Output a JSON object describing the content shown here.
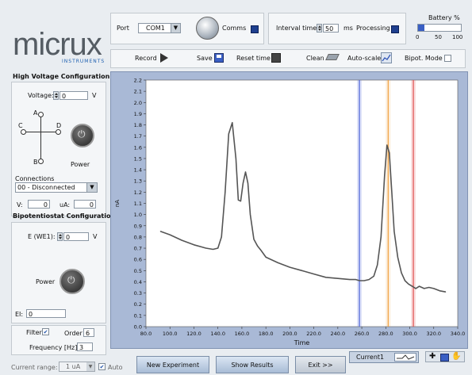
{
  "logo": {
    "text": "micrux",
    "subtext": "INSTRUMENTS"
  },
  "top": {
    "port_label": "Port",
    "port_value": "COM1",
    "comms_label": "Comms",
    "interval_label": "Interval time",
    "interval_value": "50",
    "interval_unit": "ms",
    "processing_label": "Processing",
    "battery_label": "Battery %",
    "battery_ticks": [
      "0",
      "50",
      "100"
    ],
    "battery_level_percent": 15
  },
  "toolbar": {
    "record_label": "Record",
    "save_label": "Save",
    "reset_label": "Reset time",
    "clean_label": "Clean",
    "autoscale_label": "Auto-scale",
    "bipot_label": "Bipot. Mode"
  },
  "hv": {
    "title": "High Voltage Configuration",
    "voltage_label": "Voltage:",
    "voltage_value": "0",
    "voltage_unit": "V",
    "electrodes": [
      "A",
      "B",
      "C",
      "D"
    ],
    "power_label": "Power",
    "connections_label": "Connections",
    "connections_value": "00 - Disconnected",
    "v_label": "V:",
    "v_value": "0",
    "ua_label": "uA:",
    "ua_value": "0"
  },
  "bipot": {
    "title": "Bipotentiostat Configuration",
    "e_label": "E (WE1):",
    "e_value": "0",
    "e_unit": "V",
    "power_label": "Power",
    "ei_label": "EI:",
    "ei_value": "0"
  },
  "filter": {
    "filter_label": "Filter",
    "filter_checked": true,
    "order_label": "Order",
    "order_value": "6",
    "freq_label": "Frequency [Hz]",
    "freq_value": "3"
  },
  "bottom": {
    "current_range_label": "Current range:",
    "current_range_value": "1 uA",
    "auto_label": "Auto",
    "new_experiment": "New Experiment",
    "show_results": "Show Results",
    "exit": "Exit >>",
    "legend_series": "Current1"
  },
  "cursor_readout": "0",
  "chart_data": {
    "type": "line",
    "xlabel": "Time",
    "ylabel": "nA",
    "xlim": [
      80,
      340
    ],
    "ylim": [
      0,
      2.2
    ],
    "xticks": [
      "80.0",
      "100.0",
      "120.0",
      "140.0",
      "160.0",
      "180.0",
      "200.0",
      "220.0",
      "240.0",
      "260.0",
      "280.0",
      "300.0",
      "320.0",
      "340.0"
    ],
    "yticks": [
      "0.0",
      "0.1",
      "0.2",
      "0.3",
      "0.4",
      "0.5",
      "0.6",
      "0.7",
      "0.8",
      "0.9",
      "1.0",
      "1.1",
      "1.2",
      "1.3",
      "1.4",
      "1.5",
      "1.6",
      "1.7",
      "1.8",
      "1.9",
      "2.0",
      "2.1",
      "2.2"
    ],
    "cursors": [
      {
        "x": 258,
        "color": "#4b63d8"
      },
      {
        "x": 282,
        "color": "#f0a040"
      },
      {
        "x": 303,
        "color": "#e05050"
      }
    ],
    "series": [
      {
        "color": "#555555",
        "x": [
          92,
          100,
          110,
          120,
          130,
          136,
          140,
          143,
          146,
          149,
          152,
          155,
          157,
          159,
          161,
          163,
          165,
          167,
          170,
          173,
          176,
          180,
          190,
          200,
          210,
          220,
          230,
          240,
          250,
          255,
          258,
          262,
          266,
          270,
          273,
          276,
          279,
          281,
          283,
          285,
          287,
          290,
          293,
          296,
          299,
          302,
          305,
          308,
          312,
          316,
          320,
          325,
          330
        ],
        "y": [
          0.85,
          0.82,
          0.77,
          0.73,
          0.7,
          0.69,
          0.7,
          0.8,
          1.2,
          1.72,
          1.82,
          1.5,
          1.13,
          1.12,
          1.28,
          1.38,
          1.28,
          1.0,
          0.78,
          0.72,
          0.68,
          0.62,
          0.57,
          0.53,
          0.5,
          0.47,
          0.44,
          0.43,
          0.42,
          0.42,
          0.41,
          0.41,
          0.42,
          0.45,
          0.55,
          0.8,
          1.35,
          1.62,
          1.55,
          1.2,
          0.85,
          0.62,
          0.48,
          0.41,
          0.38,
          0.36,
          0.34,
          0.36,
          0.34,
          0.35,
          0.34,
          0.32,
          0.31
        ]
      }
    ]
  }
}
